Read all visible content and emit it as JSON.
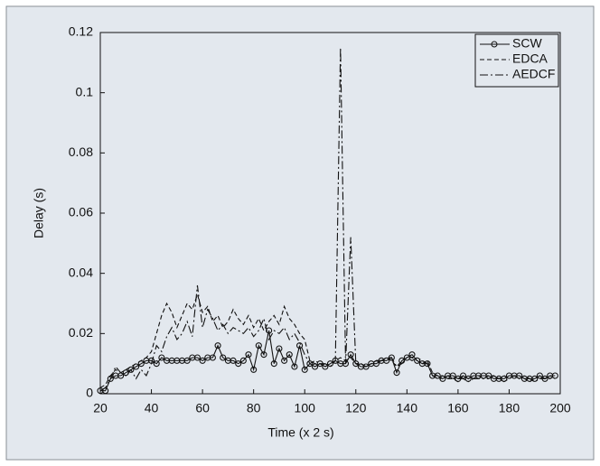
{
  "chart_data": {
    "type": "line",
    "xlabel": "Time (x 2 s)",
    "ylabel": "Delay (s)",
    "x": [
      20,
      22,
      24,
      26,
      28,
      30,
      32,
      34,
      36,
      38,
      40,
      42,
      44,
      46,
      48,
      50,
      52,
      54,
      56,
      58,
      60,
      62,
      64,
      66,
      68,
      70,
      72,
      74,
      76,
      78,
      80,
      82,
      84,
      86,
      88,
      90,
      92,
      94,
      96,
      98,
      100,
      102,
      104,
      106,
      108,
      110,
      112,
      114,
      116,
      118,
      120,
      122,
      124,
      126,
      128,
      130,
      132,
      134,
      136,
      138,
      140,
      142,
      144,
      146,
      148,
      150,
      152,
      154,
      156,
      158,
      160,
      162,
      164,
      166,
      168,
      170,
      172,
      174,
      176,
      178,
      180,
      182,
      184,
      186,
      188,
      190,
      192,
      194,
      196,
      198
    ],
    "series": [
      {
        "name": "SCW",
        "color": "#111111",
        "dash": "solid",
        "marker": "circle",
        "values": [
          0.001,
          0.001,
          0.005,
          0.006,
          0.006,
          0.007,
          0.008,
          0.009,
          0.01,
          0.011,
          0.011,
          0.01,
          0.012,
          0.011,
          0.011,
          0.011,
          0.011,
          0.011,
          0.012,
          0.012,
          0.011,
          0.012,
          0.012,
          0.016,
          0.012,
          0.011,
          0.011,
          0.01,
          0.011,
          0.013,
          0.008,
          0.016,
          0.013,
          0.021,
          0.01,
          0.015,
          0.011,
          0.013,
          0.009,
          0.016,
          0.008,
          0.01,
          0.009,
          0.01,
          0.009,
          0.01,
          0.011,
          0.01,
          0.01,
          0.013,
          0.01,
          0.009,
          0.009,
          0.01,
          0.01,
          0.011,
          0.011,
          0.012,
          0.007,
          0.011,
          0.012,
          0.013,
          0.011,
          0.01,
          0.01,
          0.006,
          0.006,
          0.005,
          0.006,
          0.006,
          0.005,
          0.006,
          0.005,
          0.006,
          0.006,
          0.006,
          0.006,
          0.005,
          0.005,
          0.005,
          0.006,
          0.006,
          0.006,
          0.005,
          0.005,
          0.005,
          0.006,
          0.005,
          0.006,
          0.006
        ]
      },
      {
        "name": "EDCA",
        "color": "#111111",
        "dash": "dashed",
        "marker": "none",
        "values": [
          0.002,
          0.003,
          0.006,
          0.008,
          0.007,
          0.008,
          0.009,
          0.01,
          0.011,
          0.012,
          0.014,
          0.02,
          0.026,
          0.03,
          0.027,
          0.022,
          0.026,
          0.03,
          0.028,
          0.033,
          0.027,
          0.029,
          0.024,
          0.026,
          0.022,
          0.024,
          0.028,
          0.025,
          0.023,
          0.026,
          0.022,
          0.025,
          0.021,
          0.024,
          0.026,
          0.023,
          0.029,
          0.025,
          0.023,
          0.02,
          0.018,
          0.011,
          0.01,
          0.01,
          0.009,
          0.01,
          0.011,
          0.012,
          0.011,
          0.012,
          0.01,
          0.01,
          0.009,
          0.01,
          0.011,
          0.011,
          0.012,
          0.011,
          0.009,
          0.011,
          0.012,
          0.012,
          0.011,
          0.01,
          0.011,
          0.007,
          0.006,
          0.006,
          0.005,
          0.005,
          0.004,
          0.006,
          0.005,
          0.005,
          0.006,
          0.005,
          0.006,
          0.006,
          0.005,
          0.006,
          0.005,
          0.006,
          0.006,
          0.005,
          0.004,
          0.005,
          0.006,
          0.005,
          0.005,
          0.006
        ]
      },
      {
        "name": "AEDCF",
        "color": "#111111",
        "dash": "dashdot",
        "marker": "none",
        "values": [
          0.001,
          0.002,
          0.005,
          0.009,
          0.007,
          0.006,
          0.008,
          0.005,
          0.008,
          0.006,
          0.01,
          0.016,
          0.014,
          0.019,
          0.022,
          0.018,
          0.02,
          0.024,
          0.019,
          0.036,
          0.022,
          0.028,
          0.025,
          0.021,
          0.023,
          0.02,
          0.022,
          0.021,
          0.02,
          0.022,
          0.019,
          0.021,
          0.025,
          0.018,
          0.021,
          0.02,
          0.022,
          0.018,
          0.02,
          0.017,
          0.013,
          0.01,
          0.011,
          0.01,
          0.01,
          0.009,
          0.011,
          0.115,
          0.01,
          0.052,
          0.01,
          0.01,
          0.009,
          0.01,
          0.011,
          0.011,
          0.012,
          0.012,
          0.009,
          0.01,
          0.012,
          0.011,
          0.012,
          0.011,
          0.01,
          0.006,
          0.005,
          0.005,
          0.006,
          0.005,
          0.005,
          0.005,
          0.004,
          0.005,
          0.005,
          0.005,
          0.005,
          0.006,
          0.005,
          0.004,
          0.005,
          0.006,
          0.005,
          0.006,
          0.005,
          0.004,
          0.005,
          0.005,
          0.006,
          0.005
        ]
      }
    ],
    "xlim": [
      20,
      200
    ],
    "xticks": [
      20,
      40,
      60,
      80,
      100,
      120,
      140,
      160,
      180,
      200
    ],
    "ylim": [
      0,
      0.12
    ],
    "yticks": [
      0,
      0.02,
      0.04,
      0.06,
      0.08,
      0.1,
      0.12
    ],
    "grid": false,
    "legend": "upper right",
    "background": "#e3e8ee"
  }
}
